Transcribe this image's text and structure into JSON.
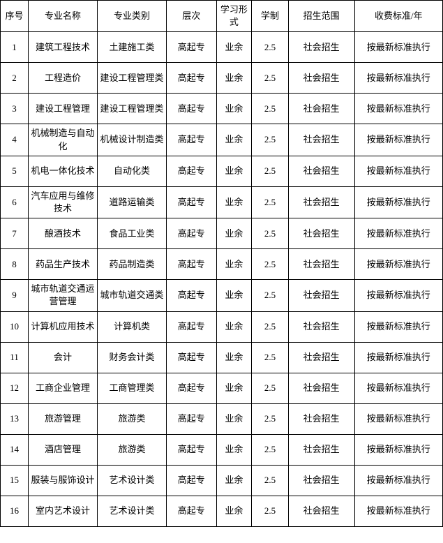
{
  "table": {
    "background_color": "#ffffff",
    "border_color": "#000000",
    "text_color": "#000000",
    "font_size": 13,
    "columns": [
      {
        "key": "seq",
        "label": "序号",
        "width": 38
      },
      {
        "key": "name",
        "label": "专业名称",
        "width": 94
      },
      {
        "key": "cat",
        "label": "专业类别",
        "width": 94
      },
      {
        "key": "level",
        "label": "层次",
        "width": 68
      },
      {
        "key": "form",
        "label": "学习形式",
        "width": 48
      },
      {
        "key": "years",
        "label": "学制",
        "width": 50
      },
      {
        "key": "scope",
        "label": "招生范围",
        "width": 90
      },
      {
        "key": "fee",
        "label": "收费标准/年",
        "width": 120
      }
    ],
    "rows": [
      {
        "seq": "1",
        "name": "建筑工程技术",
        "cat": "土建施工类",
        "level": "高起专",
        "form": "业余",
        "years": "2.5",
        "scope": "社会招生",
        "fee": "按最新标准执行"
      },
      {
        "seq": "2",
        "name": "工程造价",
        "cat": "建设工程管理类",
        "level": "高起专",
        "form": "业余",
        "years": "2.5",
        "scope": "社会招生",
        "fee": "按最新标准执行"
      },
      {
        "seq": "3",
        "name": "建设工程管理",
        "cat": "建设工程管理类",
        "level": "高起专",
        "form": "业余",
        "years": "2.5",
        "scope": "社会招生",
        "fee": "按最新标准执行"
      },
      {
        "seq": "4",
        "name": "机械制造与自动化",
        "cat": "机械设计制造类",
        "level": "高起专",
        "form": "业余",
        "years": "2.5",
        "scope": "社会招生",
        "fee": "按最新标准执行"
      },
      {
        "seq": "5",
        "name": "机电一体化技术",
        "cat": "自动化类",
        "level": "高起专",
        "form": "业余",
        "years": "2.5",
        "scope": "社会招生",
        "fee": "按最新标准执行"
      },
      {
        "seq": "6",
        "name": "汽车应用与维修技术",
        "cat": "道路运输类",
        "level": "高起专",
        "form": "业余",
        "years": "2.5",
        "scope": "社会招生",
        "fee": "按最新标准执行"
      },
      {
        "seq": "7",
        "name": "酿酒技术",
        "cat": "食品工业类",
        "level": "高起专",
        "form": "业余",
        "years": "2.5",
        "scope": "社会招生",
        "fee": "按最新标准执行"
      },
      {
        "seq": "8",
        "name": "药品生产技术",
        "cat": "药品制造类",
        "level": "高起专",
        "form": "业余",
        "years": "2.5",
        "scope": "社会招生",
        "fee": "按最新标准执行"
      },
      {
        "seq": "9",
        "name": "城市轨道交通运营管理",
        "cat": "城市轨道交通类",
        "level": "高起专",
        "form": "业余",
        "years": "2.5",
        "scope": "社会招生",
        "fee": "按最新标准执行"
      },
      {
        "seq": "10",
        "name": "计算机应用技术",
        "cat": "计算机类",
        "level": "高起专",
        "form": "业余",
        "years": "2.5",
        "scope": "社会招生",
        "fee": "按最新标准执行"
      },
      {
        "seq": "11",
        "name": "会计",
        "cat": "财务会计类",
        "level": "高起专",
        "form": "业余",
        "years": "2.5",
        "scope": "社会招生",
        "fee": "按最新标准执行"
      },
      {
        "seq": "12",
        "name": "工商企业管理",
        "cat": "工商管理类",
        "level": "高起专",
        "form": "业余",
        "years": "2.5",
        "scope": "社会招生",
        "fee": "按最新标准执行"
      },
      {
        "seq": "13",
        "name": "旅游管理",
        "cat": "旅游类",
        "level": "高起专",
        "form": "业余",
        "years": "2.5",
        "scope": "社会招生",
        "fee": "按最新标准执行"
      },
      {
        "seq": "14",
        "name": "酒店管理",
        "cat": "旅游类",
        "level": "高起专",
        "form": "业余",
        "years": "2.5",
        "scope": "社会招生",
        "fee": "按最新标准执行"
      },
      {
        "seq": "15",
        "name": "服装与服饰设计",
        "cat": "艺术设计类",
        "level": "高起专",
        "form": "业余",
        "years": "2.5",
        "scope": "社会招生",
        "fee": "按最新标准执行"
      },
      {
        "seq": "16",
        "name": "室内艺术设计",
        "cat": "艺术设计类",
        "level": "高起专",
        "form": "业余",
        "years": "2.5",
        "scope": "社会招生",
        "fee": "按最新标准执行"
      }
    ]
  }
}
